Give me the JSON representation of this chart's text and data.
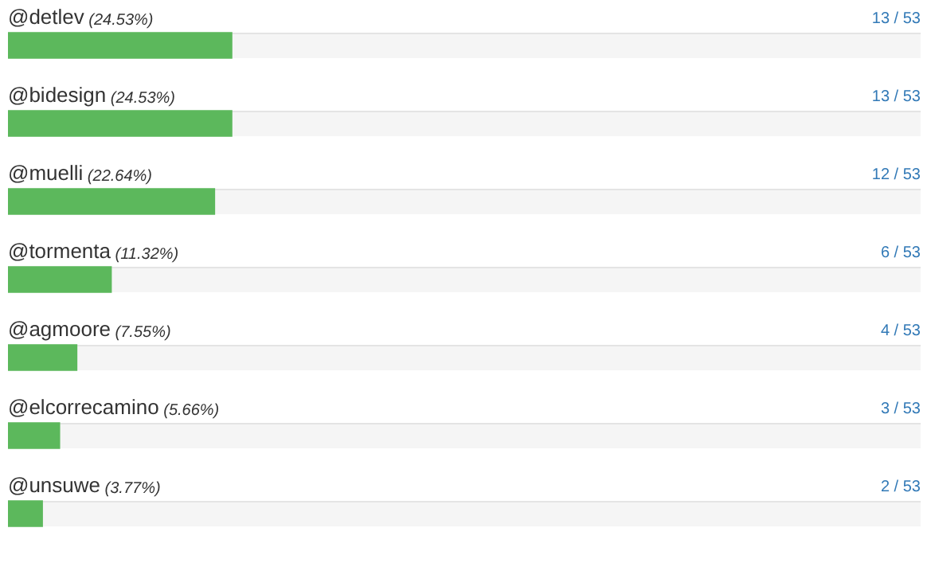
{
  "chart_data": {
    "type": "bar",
    "orientation": "horizontal",
    "categories": [
      "@detlev (24.53%)",
      "@bidesign (24.53%)",
      "@muelli (22.64%)",
      "@tormenta (11.32%)",
      "@agmoore (7.55%)",
      "@elcorrecamino (5.66%)",
      "@unsuwe (3.77%)"
    ],
    "values": [
      13,
      13,
      12,
      6,
      4,
      3,
      2
    ],
    "value_labels": [
      "13 / 53",
      "13 / 53",
      "12 / 53",
      "6 / 53",
      "4 / 53",
      "3 / 53",
      "2 / 53"
    ],
    "color": "#5cb85c",
    "xlim": [
      0,
      53
    ],
    "tick_labels": false
  }
}
